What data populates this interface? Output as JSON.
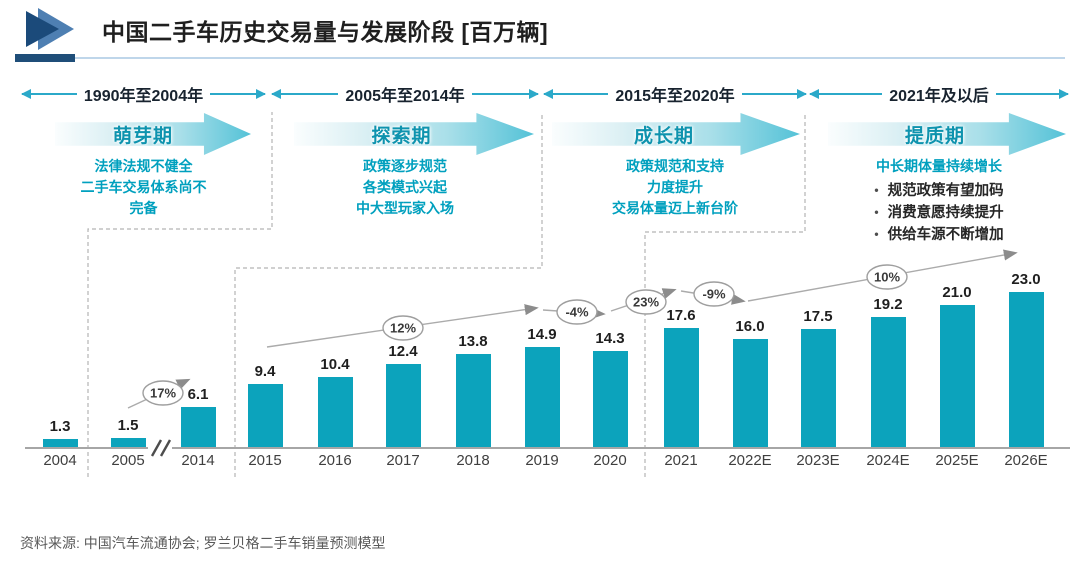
{
  "header": {
    "title": "中国二手车历史交易量与发展阶段 [百万辆]"
  },
  "phases": [
    {
      "period": "1990年至2004年",
      "stage": "萌芽期",
      "desc_lines": [
        "法律法规不健全",
        "二手车交易体系尚不",
        "完备"
      ]
    },
    {
      "period": "2005年至2014年",
      "stage": "探索期",
      "desc_lines": [
        "政策逐步规范",
        "各类模式兴起",
        "中大型玩家入场"
      ]
    },
    {
      "period": "2015年至2020年",
      "stage": "成长期",
      "desc_lines": [
        "政策规范和支持",
        "力度提升",
        "交易体量迈上新台阶"
      ]
    },
    {
      "period": "2021年及以后",
      "stage": "提质期",
      "desc_heading": "中长期体量持续增长",
      "bullets": [
        "规范政策有望加码",
        "消费意愿持续提升",
        "供给车源不断增加"
      ]
    }
  ],
  "chart_data": {
    "type": "bar",
    "title": "中国二手车历史交易量与发展阶段",
    "unit": "百万辆",
    "categories": [
      "2004",
      "2005",
      "2014",
      "2015",
      "2016",
      "2017",
      "2018",
      "2019",
      "2020",
      "2021",
      "2022E",
      "2023E",
      "2024E",
      "2025E",
      "2026E"
    ],
    "values": [
      1.3,
      1.5,
      6.1,
      9.4,
      10.4,
      12.4,
      13.8,
      14.9,
      14.3,
      17.6,
      16.0,
      17.5,
      19.2,
      21.0,
      23.0
    ],
    "value_labels": [
      "1.3",
      "1.5",
      "6.1",
      "9.4",
      "10.4",
      "12.4",
      "13.8",
      "14.9",
      "14.3",
      "17.6",
      "16.0",
      "17.5",
      "19.2",
      "21.0",
      "23.0"
    ],
    "axis_break_between": [
      "2005",
      "2014"
    ],
    "bar_color": "#0CA3BC",
    "growth_annotations": [
      {
        "label": "17%",
        "from": "2005",
        "to": "2014"
      },
      {
        "label": "12%",
        "from": "2015",
        "to": "2019"
      },
      {
        "label": "-4%",
        "from": "2019",
        "to": "2020"
      },
      {
        "label": "23%",
        "from": "2020",
        "to": "2021"
      },
      {
        "label": "-9%",
        "from": "2021",
        "to": "2022E"
      },
      {
        "label": "10%",
        "from": "2022E",
        "to": "2026E"
      }
    ],
    "legend": "none",
    "grid": "off"
  },
  "source": "资料来源: 中国汽车流通协会; 罗兰贝格二手车销量预测模型",
  "colors": {
    "bar": "#0CA3BC",
    "stage_text": "#0E93AE",
    "description_text": "#00A0BE",
    "period_arrow": "#2BA9C9",
    "brand_navy": "#1F4E79",
    "annotation_gray": "#8C8C8C"
  }
}
